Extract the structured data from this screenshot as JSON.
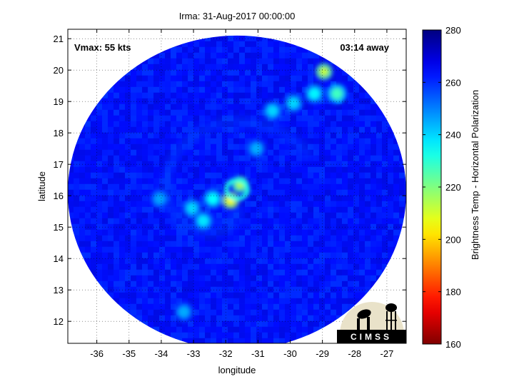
{
  "chart_data": {
    "type": "heatmap",
    "title": "Irma: 31-Aug-2017 00:00:00",
    "xlabel": "longitude",
    "ylabel": "latitude",
    "xlim": [
      -36.9,
      -26.4
    ],
    "ylim": [
      11.3,
      21.3
    ],
    "x_ticks": [
      -36,
      -35,
      -34,
      -33,
      -32,
      -31,
      -30,
      -29,
      -28,
      -27
    ],
    "y_ticks": [
      12,
      13,
      14,
      15,
      16,
      17,
      18,
      19,
      20,
      21
    ],
    "grid": true,
    "grid_style": "dotted",
    "swath_center": {
      "lon": -31.65,
      "lat": 16.1
    },
    "swath_radius_deg": {
      "lon": 5.25,
      "lat": 5.0
    },
    "storm_center": {
      "lon": -31.9,
      "lat": 15.85
    },
    "vmax_text": "Vmax: 55 kts",
    "time_offset_text": "03:14 away",
    "background_value": 262,
    "features": [
      {
        "lon": -31.55,
        "lat": 16.35,
        "value": 215,
        "note": "eyewall arc"
      },
      {
        "lon": -31.85,
        "lat": 15.85,
        "value": 205,
        "note": "core convection"
      },
      {
        "lon": -32.4,
        "lat": 15.9,
        "value": 235
      },
      {
        "lon": -33.05,
        "lat": 15.6,
        "value": 240
      },
      {
        "lon": -32.7,
        "lat": 15.2,
        "value": 238
      },
      {
        "lon": -30.55,
        "lat": 18.7,
        "value": 240
      },
      {
        "lon": -29.9,
        "lat": 18.95,
        "value": 240
      },
      {
        "lon": -29.25,
        "lat": 19.25,
        "value": 236
      },
      {
        "lon": -28.55,
        "lat": 19.25,
        "value": 228
      },
      {
        "lon": -28.95,
        "lat": 19.95,
        "value": 212
      },
      {
        "lon": -31.05,
        "lat": 17.5,
        "value": 245
      },
      {
        "lon": -34.05,
        "lat": 15.9,
        "value": 246
      },
      {
        "lon": -33.3,
        "lat": 12.3,
        "value": 245
      }
    ],
    "colorbar": {
      "label": "Brightness Temp - Horizontal Polarization",
      "min": 160,
      "max": 280,
      "ticks": [
        160,
        180,
        200,
        220,
        240,
        260,
        280
      ],
      "colormap": "jet"
    }
  },
  "logo": {
    "text": "CIMSS",
    "background": "#000000",
    "sky": "#e9e2c9"
  },
  "colors": {
    "background": "#ffffff",
    "frame": "#000000",
    "outside_swath": "#ffffff"
  }
}
